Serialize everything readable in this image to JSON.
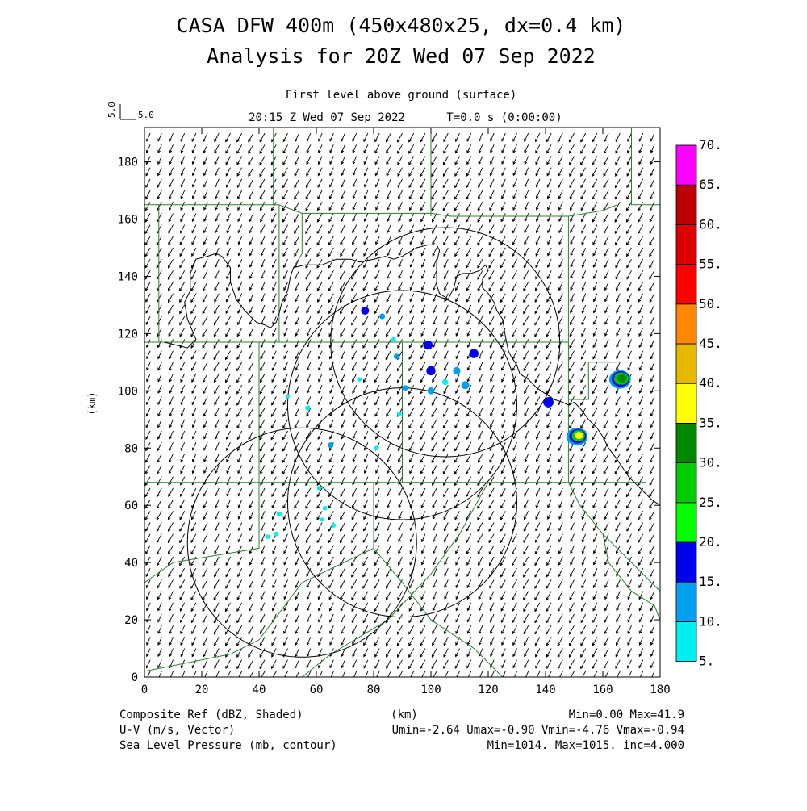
{
  "header": {
    "title_line1": "CASA DFW 400m (450x480x25, dx=0.4 km)",
    "title_line2": "Analysis for 20Z Wed 07 Sep 2022",
    "level": "First level above ground (surface)",
    "time": "20:15 Z Wed 07 Sep 2022",
    "time_offset": "T=0.0 s (0:00:00)",
    "vector_scale_label": "5.0",
    "vector_scale_value": "5.0"
  },
  "axes": {
    "x_label": "(km)",
    "y_label": "(km)",
    "x_range": [
      0,
      180
    ],
    "y_range": [
      0,
      192
    ],
    "x_ticks": [
      "0",
      "20",
      "40",
      "60",
      "80",
      "100",
      "120",
      "140",
      "160",
      "180"
    ],
    "y_ticks": [
      "0",
      "20",
      "40",
      "60",
      "80",
      "100",
      "120",
      "140",
      "160",
      "180"
    ]
  },
  "colorbar": {
    "labels": [
      "5.",
      "10.",
      "15.",
      "20.",
      "25.",
      "30.",
      "35.",
      "40.",
      "45.",
      "50.",
      "55.",
      "60.",
      "65.",
      "70."
    ],
    "colors": [
      "#00f0f0",
      "#00a0f0",
      "#0000f0",
      "#00ff00",
      "#00cc00",
      "#008800",
      "#ffff00",
      "#e6b800",
      "#ff8800",
      "#ff0000",
      "#dd0000",
      "#bb0000",
      "#ff00ff"
    ]
  },
  "footer": {
    "field1_name": "Composite Ref (dBZ, Shaded)",
    "field1_stats": "Min=0.00 Max=41.9",
    "field2_name": "U-V (m/s, Vector)",
    "field2_stats": "Umin=-2.64 Umax=-0.90 Vmin=-4.76 Vmax=-0.94",
    "field3_name": "Sea Level Pressure (mb, contour)",
    "field3_stats": "Min=1014. Max=1015. inc=4.000",
    "x_unit": "(km)"
  },
  "map": {
    "radar_rings": [
      {
        "x": 55,
        "y": 47,
        "r": 40
      },
      {
        "x": 90,
        "y": 61,
        "r": 40
      },
      {
        "x": 90,
        "y": 95,
        "r": 40
      },
      {
        "x": 105,
        "y": 117,
        "r": 40
      }
    ],
    "pressure_contour": [
      [
        7,
        117
      ],
      [
        15,
        115
      ],
      [
        18,
        118
      ],
      [
        15,
        125
      ],
      [
        14,
        131
      ],
      [
        16,
        135
      ],
      [
        16,
        141
      ],
      [
        18,
        146
      ],
      [
        22,
        147
      ],
      [
        25,
        148
      ],
      [
        27,
        147
      ],
      [
        30,
        143
      ],
      [
        30,
        138
      ],
      [
        32,
        132
      ],
      [
        35,
        128
      ],
      [
        39,
        124
      ],
      [
        42,
        123
      ],
      [
        44,
        122
      ],
      [
        46,
        124
      ],
      [
        47,
        127
      ],
      [
        48,
        131
      ],
      [
        50,
        135
      ],
      [
        51,
        140
      ],
      [
        52,
        143
      ],
      [
        56,
        144
      ],
      [
        62,
        144
      ],
      [
        67,
        146
      ],
      [
        72,
        146
      ],
      [
        75,
        145
      ],
      [
        80,
        146
      ],
      [
        84,
        147
      ],
      [
        87,
        146
      ],
      [
        90,
        147
      ],
      [
        95,
        150
      ],
      [
        99,
        151
      ],
      [
        102,
        151
      ],
      [
        103,
        149
      ],
      [
        102,
        145
      ],
      [
        102,
        141
      ],
      [
        102,
        137
      ],
      [
        103,
        134
      ],
      [
        106,
        132
      ],
      [
        108,
        136
      ],
      [
        109,
        140
      ],
      [
        111,
        141
      ],
      [
        114,
        141
      ],
      [
        117,
        142
      ],
      [
        119,
        144
      ],
      [
        120,
        142
      ],
      [
        118,
        139
      ],
      [
        118,
        136
      ],
      [
        120,
        134
      ],
      [
        122,
        131
      ],
      [
        123,
        128
      ],
      [
        125,
        125
      ],
      [
        126,
        119
      ],
      [
        127,
        114
      ],
      [
        128,
        112
      ],
      [
        130,
        109
      ],
      [
        131,
        106
      ],
      [
        134,
        104
      ],
      [
        137,
        101
      ],
      [
        140,
        99
      ],
      [
        143,
        97
      ],
      [
        146,
        96
      ],
      [
        148,
        95
      ],
      [
        150,
        96
      ],
      [
        152,
        94
      ],
      [
        155,
        90
      ],
      [
        158,
        87
      ],
      [
        160,
        84
      ],
      [
        162,
        80
      ],
      [
        165,
        76
      ],
      [
        167,
        73
      ],
      [
        169,
        70
      ],
      [
        171,
        68
      ],
      [
        173,
        66
      ],
      [
        175,
        64
      ],
      [
        177,
        62
      ],
      [
        180,
        60
      ]
    ],
    "boundaries": [
      [
        [
          5,
          165
        ],
        [
          47,
          165
        ],
        [
          47,
          117
        ],
        [
          5,
          117
        ]
      ],
      [
        [
          0,
          117
        ],
        [
          5,
          117
        ],
        [
          5,
          165
        ],
        [
          0,
          165
        ]
      ],
      [
        [
          47,
          165
        ],
        [
          55,
          162
        ],
        [
          55,
          148
        ],
        [
          52,
          143
        ]
      ],
      [
        [
          55,
          162
        ],
        [
          100,
          162
        ],
        [
          107,
          161
        ],
        [
          148,
          161
        ],
        [
          148,
          117
        ]
      ],
      [
        [
          47,
          117
        ],
        [
          148,
          117
        ]
      ],
      [
        [
          40,
          117
        ],
        [
          40,
          68
        ],
        [
          0,
          68
        ]
      ],
      [
        [
          148,
          117
        ],
        [
          148,
          97
        ],
        [
          155,
          97
        ],
        [
          155,
          110
        ],
        [
          165,
          110
        ]
      ],
      [
        [
          148,
          97
        ],
        [
          148,
          68
        ],
        [
          175,
          68
        ]
      ],
      [
        [
          40,
          68
        ],
        [
          40,
          45
        ],
        [
          10,
          40
        ],
        [
          0,
          33
        ]
      ],
      [
        [
          40,
          68
        ],
        [
          80,
          68
        ],
        [
          80,
          45
        ],
        [
          55,
          33
        ],
        [
          40,
          13
        ],
        [
          30,
          8
        ],
        [
          0,
          2
        ]
      ],
      [
        [
          80,
          45
        ],
        [
          90,
          33
        ],
        [
          100,
          20
        ],
        [
          115,
          10
        ],
        [
          125,
          0
        ]
      ],
      [
        [
          80,
          68
        ],
        [
          130,
          68
        ],
        [
          148,
          68
        ],
        [
          152,
          60
        ],
        [
          160,
          50
        ],
        [
          168,
          42
        ],
        [
          175,
          35
        ],
        [
          180,
          30
        ]
      ],
      [
        [
          100,
          161
        ],
        [
          100,
          192
        ]
      ],
      [
        [
          45,
          192
        ],
        [
          45,
          165
        ]
      ],
      [
        [
          148,
          161
        ],
        [
          160,
          163
        ],
        [
          165,
          165
        ]
      ],
      [
        [
          170,
          192
        ],
        [
          170,
          165
        ],
        [
          180,
          165
        ]
      ],
      [
        [
          90,
          117
        ],
        [
          90,
          68
        ]
      ],
      [
        [
          120,
          68
        ],
        [
          110,
          50
        ],
        [
          100,
          36
        ],
        [
          85,
          20
        ],
        [
          65,
          8
        ],
        [
          55,
          0
        ]
      ],
      [
        [
          160,
          50
        ],
        [
          162,
          40
        ],
        [
          170,
          30
        ],
        [
          178,
          25
        ],
        [
          180,
          20
        ]
      ]
    ],
    "echoes": [
      {
        "x": 77,
        "y": 128,
        "s": 1.4,
        "c": "#0000f0"
      },
      {
        "x": 83,
        "y": 126,
        "s": 1.0,
        "c": "#00a0f0"
      },
      {
        "x": 87,
        "y": 118,
        "s": 0.8,
        "c": "#00f0f0"
      },
      {
        "x": 99,
        "y": 116,
        "s": 1.6,
        "c": "#0000f0"
      },
      {
        "x": 88,
        "y": 112,
        "s": 1.0,
        "c": "#00a0f0"
      },
      {
        "x": 100,
        "y": 107,
        "s": 1.6,
        "c": "#0000f0"
      },
      {
        "x": 109,
        "y": 107,
        "s": 1.3,
        "c": "#00a0f0"
      },
      {
        "x": 115,
        "y": 113,
        "s": 1.6,
        "c": "#0000f0"
      },
      {
        "x": 112,
        "y": 102,
        "s": 1.4,
        "c": "#00a0f0"
      },
      {
        "x": 105,
        "y": 103,
        "s": 1.0,
        "c": "#00f0f0"
      },
      {
        "x": 100,
        "y": 100,
        "s": 1.2,
        "c": "#00a0f0"
      },
      {
        "x": 91,
        "y": 101,
        "s": 1.0,
        "c": "#00a0f0"
      },
      {
        "x": 75,
        "y": 104,
        "s": 0.8,
        "c": "#00f0f0"
      },
      {
        "x": 89,
        "y": 92,
        "s": 0.8,
        "c": "#00f0f0"
      },
      {
        "x": 57,
        "y": 94,
        "s": 0.9,
        "c": "#00f0f0"
      },
      {
        "x": 50,
        "y": 98,
        "s": 0.7,
        "c": "#00f0f0"
      },
      {
        "x": 65,
        "y": 81,
        "s": 1.0,
        "c": "#00a0f0"
      },
      {
        "x": 81,
        "y": 80,
        "s": 0.8,
        "c": "#00f0f0"
      },
      {
        "x": 61,
        "y": 66,
        "s": 0.8,
        "c": "#00f0f0"
      },
      {
        "x": 63,
        "y": 59,
        "s": 0.8,
        "c": "#00f0f0"
      },
      {
        "x": 47,
        "y": 57,
        "s": 0.9,
        "c": "#00f0f0"
      },
      {
        "x": 62,
        "y": 55,
        "s": 0.7,
        "c": "#00f0f0"
      },
      {
        "x": 66,
        "y": 53,
        "s": 0.8,
        "c": "#00f0f0"
      },
      {
        "x": 46,
        "y": 50,
        "s": 0.8,
        "c": "#00f0f0"
      },
      {
        "x": 43,
        "y": 49,
        "s": 0.8,
        "c": "#00f0f0"
      },
      {
        "x": 141,
        "y": 96,
        "s": 1.8,
        "c": "#0000f0"
      }
    ],
    "storms": [
      {
        "x": 151,
        "y": 84,
        "layers": [
          [
            3.5,
            "#00a0f0"
          ],
          [
            2.8,
            "#0000f0"
          ],
          [
            2.2,
            "#00cc00"
          ],
          [
            1.4,
            "#ffff00"
          ]
        ]
      },
      {
        "x": 166,
        "y": 104,
        "layers": [
          [
            3.6,
            "#00a0f0"
          ],
          [
            3.0,
            "#0000f0"
          ],
          [
            2.4,
            "#00cc00"
          ],
          [
            1.6,
            "#008800"
          ]
        ]
      }
    ],
    "wind": {
      "u": -1.6,
      "v": -3.2,
      "spacing": 4
    }
  }
}
